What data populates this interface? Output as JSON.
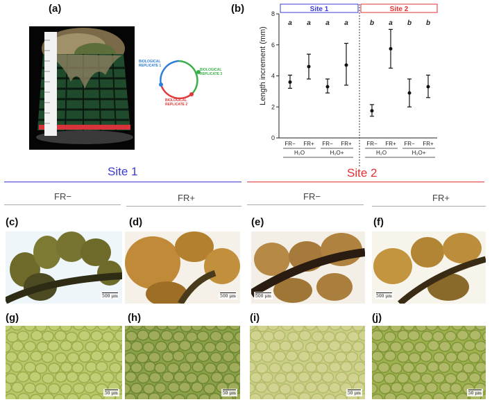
{
  "panels": {
    "a": "(a)",
    "b": "(b)",
    "c": "(c)",
    "d": "(d)",
    "e": "(e)",
    "f": "(f)",
    "g": "(g)",
    "h": "(h)",
    "i": "(i)",
    "j": "(j)"
  },
  "diagram": {
    "replicate1": "BIOLOGICAL REPLICATE 1",
    "replicate2": "BIOLOGICAL REPLICATE 2",
    "replicate3": "BIOLOGICAL REPLICATE 3",
    "colors": {
      "rep1": "#2c7fd8",
      "rep2": "#e23a3a",
      "rep3": "#3ab04a"
    }
  },
  "headers": {
    "site1": "Site 1",
    "site2": "Site 2",
    "fr_minus": "FR−",
    "fr_plus": "FR+",
    "site1_color": "#3b3bd1",
    "site2_color": "#e03030"
  },
  "scalebars": {
    "macro": "500 μm",
    "micro": "50 μm"
  },
  "chart_data": {
    "type": "scatter",
    "ylabel": "Length increment (mm)",
    "ylim": [
      0,
      8
    ],
    "yticks": [
      0,
      2,
      4,
      6,
      8
    ],
    "groups": [
      {
        "name": "Site 1",
        "color": "#3b3bd1"
      },
      {
        "name": "Site 2",
        "color": "#e03030"
      }
    ],
    "categories": [
      "FR−",
      "FR+",
      "FR−",
      "FR+",
      "FR−",
      "FR+",
      "FR−",
      "FR+"
    ],
    "water": [
      "H₂O",
      "H₂O+",
      "H₂O",
      "H₂O+"
    ],
    "series": [
      {
        "values": [
          3.6,
          4.6,
          3.3,
          4.7,
          1.75,
          5.75,
          2.9,
          3.3
        ],
        "lower": [
          3.2,
          3.8,
          2.9,
          3.4,
          1.4,
          4.5,
          2.0,
          2.6
        ],
        "upper": [
          4.05,
          5.4,
          3.8,
          6.1,
          2.15,
          7.0,
          3.8,
          4.05
        ],
        "letters": [
          "a",
          "a",
          "a",
          "a",
          "b",
          "a",
          "b",
          "b"
        ]
      }
    ]
  }
}
